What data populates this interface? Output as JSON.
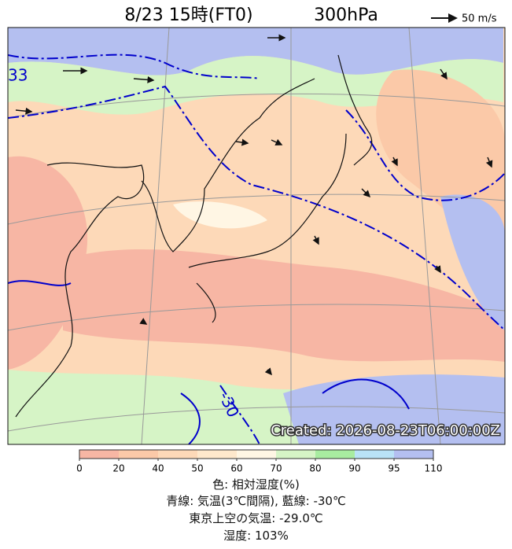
{
  "header": {
    "title": "8/23 15時(FT0)",
    "level": "300hPa",
    "wind_legend": "50 m/s"
  },
  "map": {
    "contour_labels": [
      "33",
      "-30"
    ],
    "stamp": "Created: 2026-08-23T06:00:00Z"
  },
  "colorbar": {
    "ticks": [
      0,
      20,
      40,
      50,
      60,
      70,
      80,
      90,
      95,
      110
    ],
    "colors": [
      "#f7b6a4",
      "#fbc9a8",
      "#fdd9b8",
      "#fee8cc",
      "#fff6e4",
      "#d6f4c6",
      "#a8eca0",
      "#b9e2f6",
      "#b4bff0"
    ]
  },
  "caption": [
    "色: 相対湿度(%)",
    "青線: 気温(3℃間隔), 藍線: -30℃",
    "東京上空の気温: -29.0℃",
    "湿度: 103%"
  ]
}
